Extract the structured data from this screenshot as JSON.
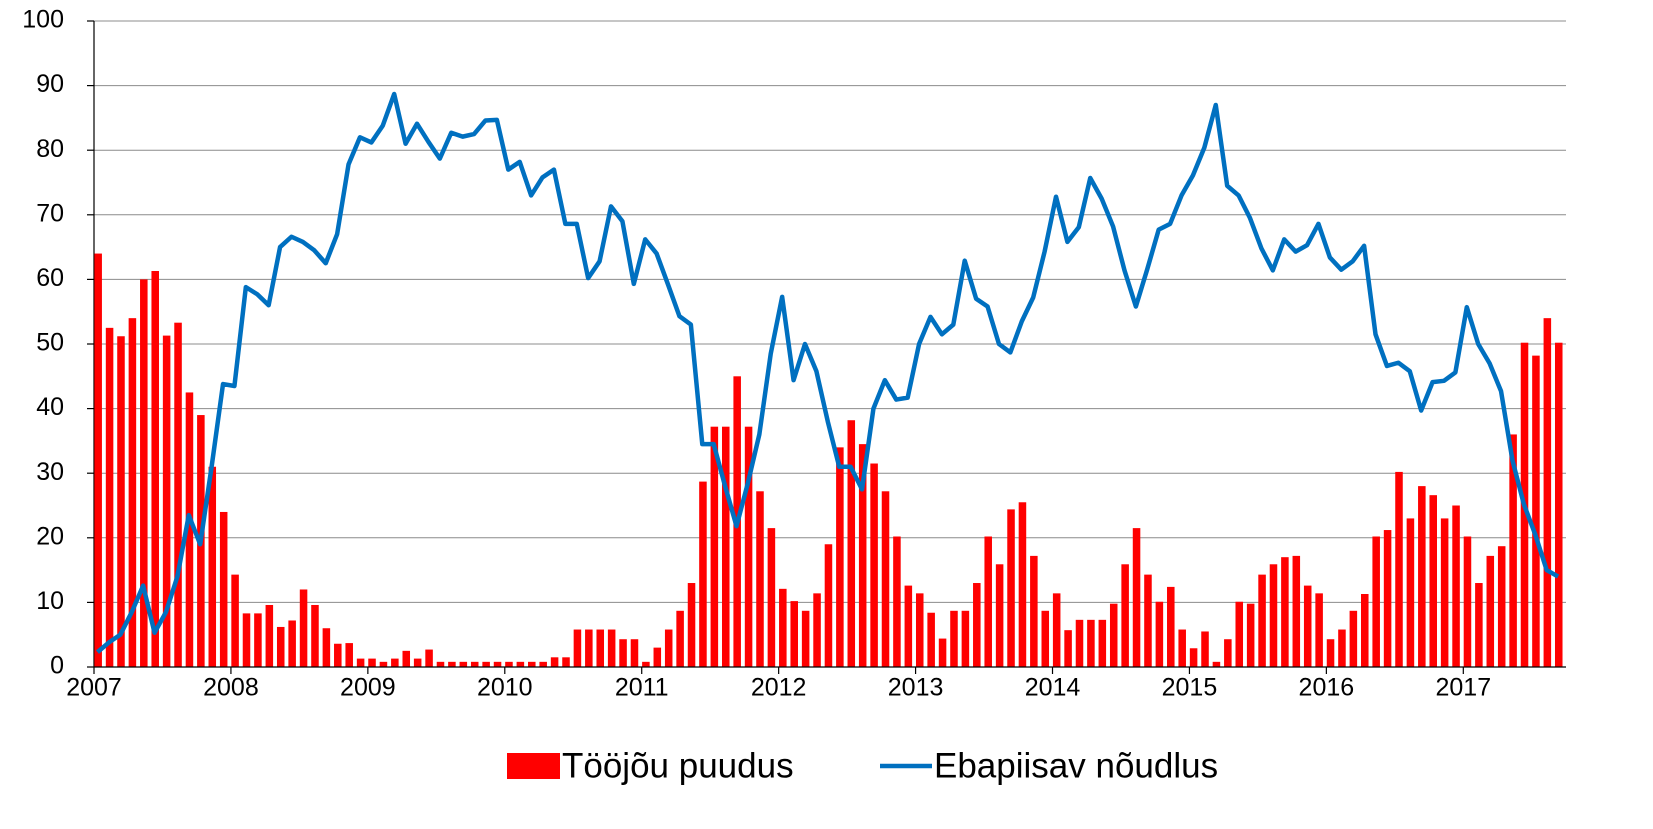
{
  "chart_data": {
    "type": "combo",
    "categories": [
      "2007",
      null,
      null,
      null,
      null,
      null,
      null,
      null,
      null,
      null,
      null,
      null,
      "2008",
      null,
      null,
      null,
      null,
      null,
      null,
      null,
      null,
      null,
      null,
      null,
      "2009",
      null,
      null,
      null,
      null,
      null,
      null,
      null,
      null,
      null,
      null,
      null,
      "2010",
      null,
      null,
      null,
      null,
      null,
      null,
      null,
      null,
      null,
      null,
      null,
      "2011",
      null,
      null,
      null,
      null,
      null,
      null,
      null,
      null,
      null,
      null,
      null,
      "2012",
      null,
      null,
      null,
      null,
      null,
      null,
      null,
      null,
      null,
      null,
      null,
      "2013",
      null,
      null,
      null,
      null,
      null,
      null,
      null,
      null,
      null,
      null,
      null,
      "2014",
      null,
      null,
      null,
      null,
      null,
      null,
      null,
      null,
      null,
      null,
      null,
      "2015",
      null,
      null,
      null,
      null,
      null,
      null,
      null,
      null,
      null,
      null,
      null,
      "2016",
      null,
      null,
      null,
      null,
      null,
      null,
      null,
      null,
      null,
      null,
      null,
      "2017",
      null,
      null,
      null,
      null,
      null,
      null,
      null,
      null
    ],
    "series": [
      {
        "name": "Tööjõu puudus",
        "type": "bar",
        "color": "#ff0000",
        "values": [
          64,
          52.5,
          51.2,
          54,
          60,
          61.3,
          51.3,
          53.3,
          42.5,
          39,
          31,
          24,
          14.3,
          8.3,
          8.3,
          9.6,
          6.2,
          7.2,
          12,
          9.6,
          6,
          3.6,
          3.7,
          1.3,
          1.3,
          0.8,
          1.3,
          2.5,
          1.3,
          2.7,
          0.8,
          0.8,
          0.8,
          0.8,
          0.8,
          0.8,
          0.8,
          0.8,
          0.8,
          0.8,
          1.5,
          1.5,
          5.8,
          5.8,
          5.8,
          5.8,
          4.3,
          4.3,
          0.8,
          3,
          5.8,
          8.7,
          13,
          28.7,
          37.2,
          37.2,
          45,
          37.2,
          27.2,
          21.5,
          12.1,
          10.2,
          8.7,
          11.4,
          19,
          34,
          38.2,
          34.5,
          31.5,
          27.2,
          20.2,
          12.6,
          11.4,
          8.4,
          4.4,
          8.7,
          8.7,
          13,
          20.2,
          15.9,
          24.4,
          25.5,
          17.2,
          8.7,
          11.4,
          5.7,
          7.3,
          7.3,
          7.3,
          9.8,
          15.9,
          21.5,
          14.3,
          10.1,
          12.4,
          5.8,
          2.9,
          5.5,
          0.8,
          4.3,
          10.1,
          9.8,
          14.3,
          15.9,
          17,
          17.2,
          12.6,
          11.4,
          4.3,
          5.8,
          8.7,
          11.3,
          20.2,
          21.2,
          30.2,
          23,
          28,
          26.6,
          23,
          25,
          20.2,
          13,
          17.2,
          18.7,
          36,
          50.2,
          48.2,
          54,
          50.2
        ]
      },
      {
        "name": "Ebapiisav nõudlus",
        "type": "line",
        "color": "#0070c0",
        "values": [
          2.3,
          3.8,
          5,
          8.5,
          12.6,
          5.3,
          8.5,
          14,
          23.5,
          19,
          31,
          43.8,
          43.5,
          58.8,
          57.7,
          56,
          65,
          66.6,
          65.8,
          64.5,
          62.5,
          67,
          77.8,
          82,
          81.2,
          83.8,
          88.7,
          81,
          84.1,
          81.3,
          78.7,
          82.7,
          82.1,
          82.5,
          84.6,
          84.7,
          77,
          78.2,
          73,
          75.8,
          77,
          68.6,
          68.6,
          60.2,
          62.8,
          71.3,
          69,
          59.3,
          66.2,
          64,
          59.2,
          54.3,
          53,
          34.5,
          34.5,
          28,
          21.8,
          28.5,
          36,
          48.5,
          57.3,
          44.4,
          50,
          45.8,
          38,
          31,
          31,
          27.5,
          40,
          44.4,
          41.4,
          41.7,
          50,
          54.2,
          51.5,
          53,
          62.9,
          57,
          55.8,
          50,
          48.7,
          53.5,
          57.2,
          64.3,
          72.8,
          65.8,
          68.1,
          75.7,
          72.5,
          68.2,
          61.4,
          55.8,
          61.6,
          67.7,
          68.6,
          73,
          76.1,
          80.4,
          87,
          74.5,
          73,
          69.5,
          64.8,
          61.4,
          66.2,
          64.3,
          65.3,
          68.6,
          63.4,
          61.5,
          62.8,
          65.2,
          51.5,
          46.6,
          47.1,
          45.8,
          39.7,
          44.1,
          44.3,
          45.6,
          55.7,
          50,
          47,
          42.7,
          32,
          25.2,
          20.5,
          15,
          14
        ]
      }
    ],
    "ylim": [
      0,
      100
    ],
    "yticks": [
      0,
      10,
      20,
      30,
      40,
      50,
      60,
      70,
      80,
      90,
      100
    ],
    "grid": true,
    "legend": "bottom"
  }
}
